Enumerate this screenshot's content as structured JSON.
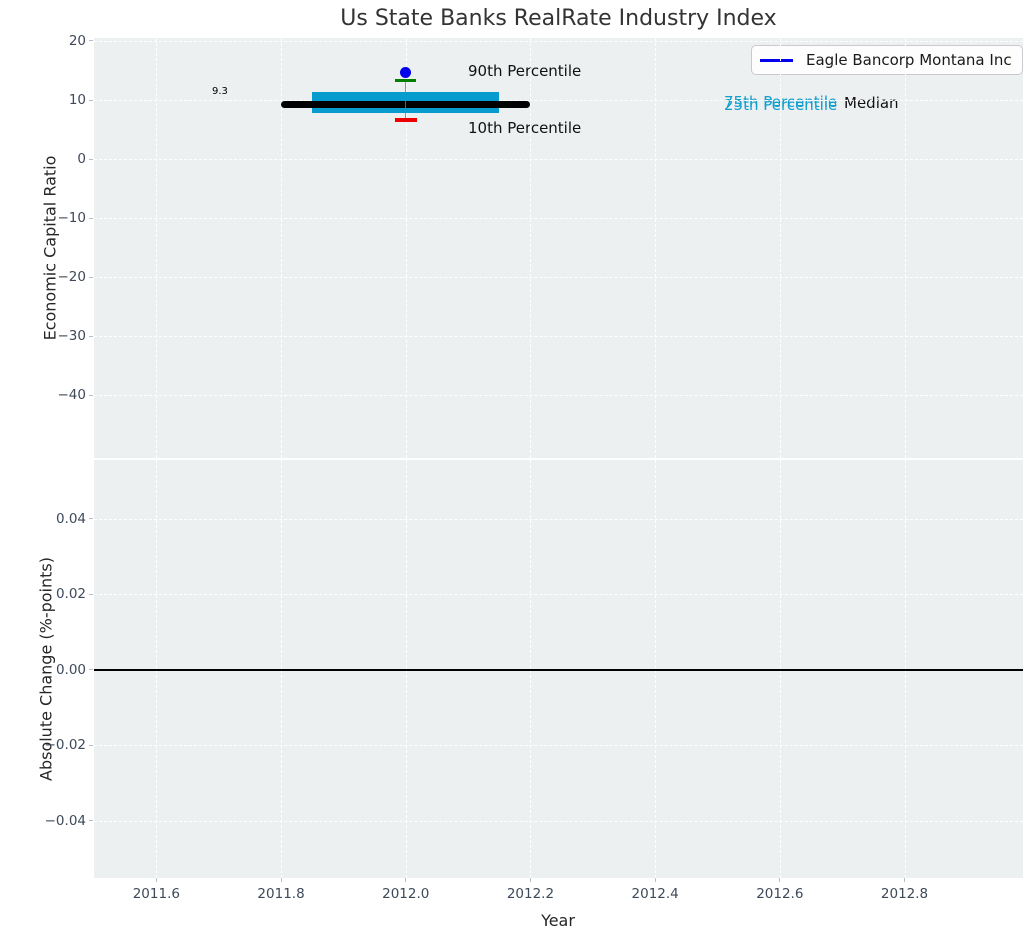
{
  "chart_data": {
    "type": "boxplot",
    "title": "Us State Banks RealRate Industry Index",
    "xlabel": "Year",
    "grid": true,
    "legend": {
      "position": "upper right",
      "entries": [
        {
          "label": "Eagle Bancorp Montana Inc",
          "color": "#0000ee",
          "style": "line"
        }
      ]
    },
    "xlim": [
      2011.5,
      2012.99
    ],
    "xtick_values": [
      2011.6,
      2011.8,
      2012.0,
      2012.2,
      2012.4,
      2012.6,
      2012.8
    ],
    "xtick_labels": [
      "2011.6",
      "2011.8",
      "2012.0",
      "2012.2",
      "2012.4",
      "2012.6",
      "2012.8"
    ],
    "subplots": [
      {
        "ylabel": "Economic Capital Ratio",
        "ylim": [
          -50.6,
          20.5
        ],
        "ytick_values": [
          20,
          10,
          0,
          -10,
          -20,
          -30,
          -40
        ],
        "ytick_labels": [
          "20",
          "10",
          "0",
          "−10",
          "−20",
          "−30",
          "−40"
        ],
        "industry_percentiles": {
          "year": 2012.0,
          "p10": 6.6,
          "p25": 7.8,
          "median": 9.3,
          "p75": 11.4,
          "p90": 13.3,
          "median_line_span_years": [
            2011.8,
            2012.2
          ],
          "box_span_years": [
            2011.85,
            2012.15
          ]
        },
        "company_point": {
          "name": "Eagle Bancorp Montana Inc",
          "year": 2012.0,
          "value": 14.6
        },
        "annotations": {
          "median_value": "9.3",
          "p90": "90th Percentile",
          "p10": "10th Percentile",
          "p75": "75th Percentile",
          "p25": "25th Percentile",
          "median": "Median"
        }
      },
      {
        "ylabel": "Absolute Change (%-points)",
        "ylim": [
          -0.0551,
          0.0556
        ],
        "ytick_values": [
          0.04,
          0.02,
          0,
          -0.02,
          -0.04
        ],
        "ytick_labels": [
          "0.04",
          "0.02",
          "0.00",
          "−0.02",
          "−0.04"
        ],
        "zero_line": 0.0,
        "series": []
      }
    ]
  },
  "colors": {
    "plot_bg": "#edf0f1",
    "grid": "#ffffff",
    "box_fill": "#089bcd",
    "company_blue": "#0000ee",
    "p90_green": "#007f00",
    "p10_red": "#ee0000",
    "median_black": "#000000",
    "whisker_gray": "#777777",
    "tick_label": "#3e4a5a",
    "title_text": "#333333",
    "percentile_text_cyan": "#129fce"
  }
}
